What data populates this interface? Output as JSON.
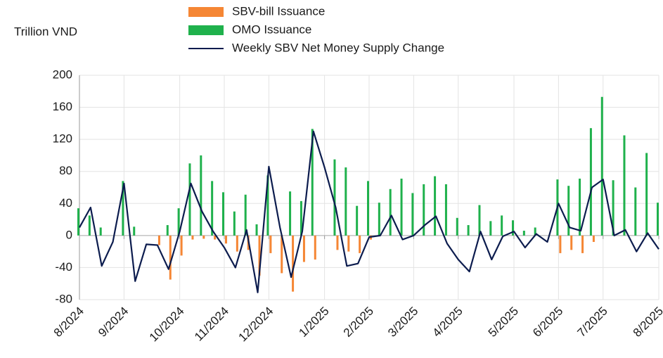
{
  "chart_data": {
    "type": "bar-line",
    "y_label": "Trillion VND",
    "categories": [
      "8/2024",
      null,
      null,
      null,
      "9/2024",
      null,
      null,
      null,
      null,
      "10/2024",
      null,
      null,
      null,
      "11/2024",
      null,
      null,
      null,
      "12/2024",
      null,
      null,
      null,
      null,
      "1/2025",
      null,
      null,
      null,
      "2/2025",
      null,
      null,
      null,
      "3/2025",
      null,
      null,
      null,
      "4/2025",
      null,
      null,
      null,
      null,
      "5/2025",
      null,
      null,
      null,
      "6/2025",
      null,
      null,
      null,
      "7/2025",
      null,
      null,
      null,
      null,
      "8/2025"
    ],
    "series": [
      {
        "name": "SBV-bill Issuance",
        "kind": "bar",
        "color": "#f58634",
        "values": [
          null,
          null,
          null,
          null,
          null,
          null,
          null,
          -12,
          -55,
          -25,
          -5,
          -4,
          -5,
          -10,
          -20,
          -18,
          -50,
          -22,
          -47,
          -70,
          -33,
          -30,
          null,
          -18,
          -20,
          -22,
          -5,
          null,
          null,
          null,
          null,
          null,
          null,
          null,
          null,
          null,
          null,
          null,
          null,
          null,
          null,
          null,
          null,
          -22,
          -18,
          -22,
          -8,
          null,
          null,
          null,
          null,
          null,
          null
        ]
      },
      {
        "name": "OMO Issuance",
        "kind": "bar",
        "color": "#1fb14c",
        "values": [
          34,
          25,
          10,
          null,
          68,
          11,
          null,
          null,
          13,
          34,
          90,
          100,
          68,
          54,
          30,
          51,
          14,
          75,
          null,
          55,
          43,
          133,
          null,
          95,
          85,
          37,
          68,
          41,
          58,
          71,
          53,
          64,
          74,
          64,
          22,
          13,
          38,
          18,
          25,
          19,
          6,
          10,
          null,
          70,
          62,
          71,
          134,
          173,
          69,
          125,
          60,
          103,
          41
        ]
      },
      {
        "name": "Weekly SBV Net Money Supply Change",
        "kind": "line",
        "color": "#0c1c4e",
        "values": [
          10,
          35,
          -38,
          -8,
          65,
          -57,
          -11,
          -12,
          -42,
          5,
          65,
          30,
          5,
          -15,
          -40,
          7,
          -71,
          86,
          10,
          -52,
          5,
          130,
          85,
          35,
          -38,
          -35,
          -2,
          0,
          25,
          -5,
          0,
          13,
          24,
          -10,
          -30,
          -45,
          5,
          -30,
          -1,
          5,
          -15,
          2,
          -8,
          40,
          10,
          6,
          60,
          70,
          0,
          7,
          -20,
          3,
          -17
        ]
      }
    ],
    "ylim": [
      -80,
      200
    ],
    "yticks": [
      -80,
      -40,
      0,
      40,
      80,
      120,
      160,
      200
    ],
    "grid": true
  }
}
